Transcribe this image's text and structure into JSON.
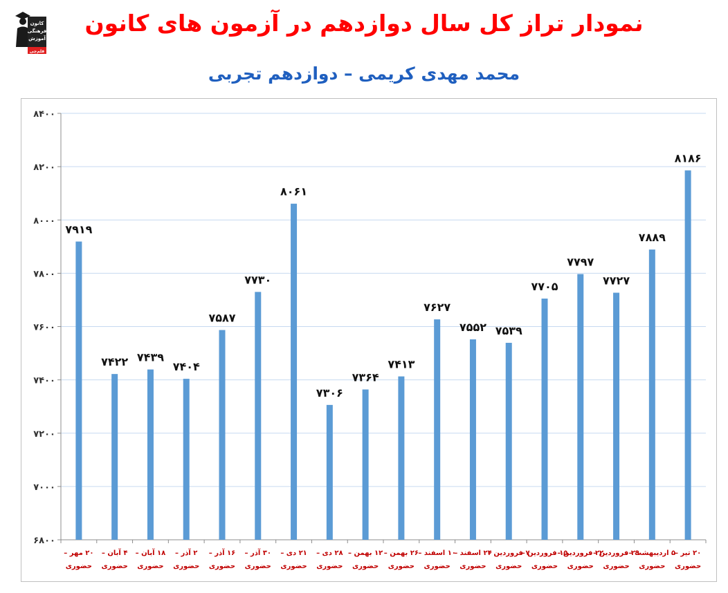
{
  "title": "نمودار تراز کل سال دوازدهم در آزمون های کانون",
  "subtitle": "محمد مهدی کریمی – دوازدهم تجربی",
  "logo": {
    "icon": "graduate-person-icon",
    "lines": [
      "کانون",
      "فرهنگی",
      "آموزش"
    ],
    "badge": "قلم‌چی"
  },
  "colors": {
    "title": "#ff0000",
    "subtitle": "#1f5fbf",
    "bar": "#5b9bd5",
    "grid": "#c6d9f1",
    "category_label": "#c00000"
  },
  "chart_data": {
    "type": "bar",
    "title": "",
    "xlabel": "",
    "ylabel": "",
    "ylim": [
      6800,
      8400
    ],
    "yticks": [
      6800,
      7000,
      7200,
      7400,
      7600,
      7800,
      8000,
      8200,
      8400
    ],
    "ytick_labels": [
      "۶۸۰۰",
      "۷۰۰۰",
      "۷۲۰۰",
      "۷۴۰۰",
      "۷۶۰۰",
      "۷۸۰۰",
      "۸۰۰۰",
      "۸۲۰۰",
      "۸۴۰۰"
    ],
    "grid": true,
    "legend": "none",
    "categories": [
      [
        "۲۰ مهر –",
        "حضوری"
      ],
      [
        "۴ آبان –",
        "حضوری"
      ],
      [
        "۱۸ آبان –",
        "حضوری"
      ],
      [
        "۲ آذر –",
        "حضوری"
      ],
      [
        "۱۶ آذر –",
        "حضوری"
      ],
      [
        "۳۰ آذر –",
        "حضوری"
      ],
      [
        "۲۱ دی –",
        "حضوری"
      ],
      [
        "۲۸ دی –",
        "حضوری"
      ],
      [
        "۱۲ بهمن –",
        "حضوری"
      ],
      [
        "۲۶ بهمن –",
        "حضوری"
      ],
      [
        "۱۰ اسفند –",
        "حضوری"
      ],
      [
        "۲۴ اسفند –",
        "حضوری"
      ],
      [
        "۷ فروردین –",
        "حضوری"
      ],
      [
        "۱۵ فروردین –",
        "حضوری"
      ],
      [
        "۲۲ فروردین –",
        "حضوری"
      ],
      [
        "۲۹ فروردین –",
        "حضوری"
      ],
      [
        "۵ اردیبهشت –",
        "حضوری"
      ],
      [
        "۲۰ تیر –",
        "حضوری"
      ]
    ],
    "values": [
      7919,
      7422,
      7439,
      7404,
      7587,
      7730,
      8061,
      7306,
      7364,
      7413,
      7627,
      7552,
      7539,
      7705,
      7797,
      7727,
      7889,
      8186
    ],
    "value_labels": [
      "۷۹۱۹",
      "۷۴۲۲",
      "۷۴۳۹",
      "۷۴۰۴",
      "۷۵۸۷",
      "۷۷۳۰",
      "۸۰۶۱",
      "۷۳۰۶",
      "۷۳۶۴",
      "۷۴۱۳",
      "۷۶۲۷",
      "۷۵۵۲",
      "۷۵۳۹",
      "۷۷۰۵",
      "۷۷۹۷",
      "۷۷۲۷",
      "۷۸۸۹",
      "۸۱۸۶"
    ]
  }
}
